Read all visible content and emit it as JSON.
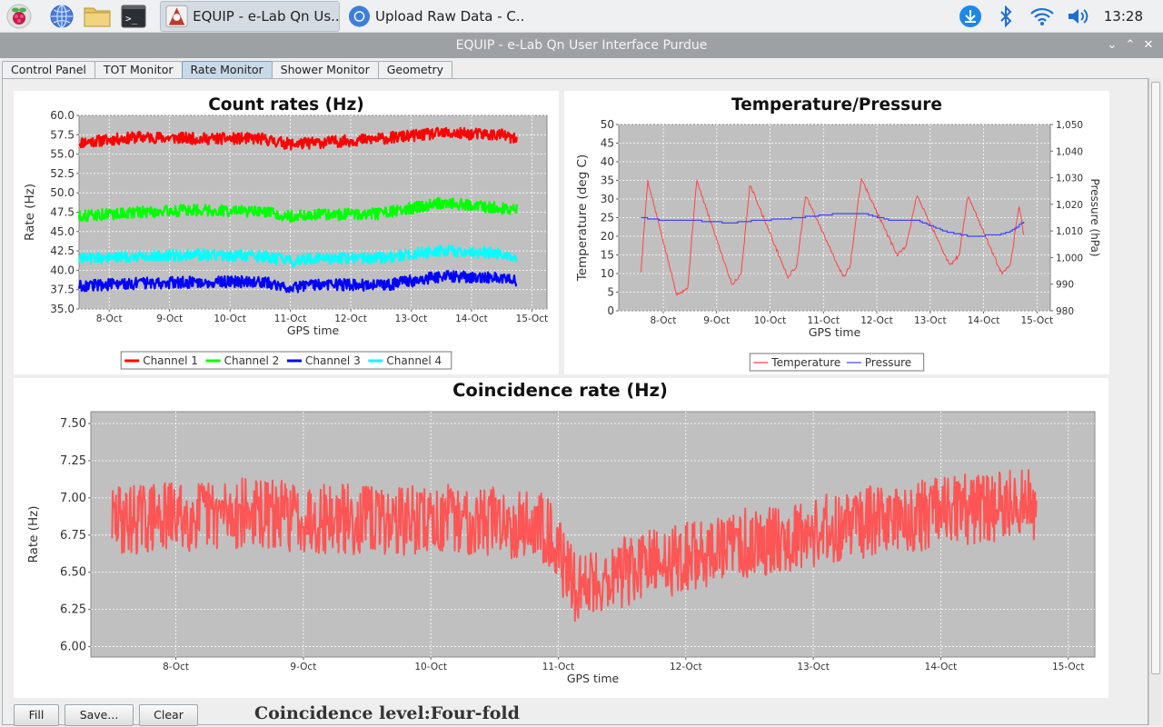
{
  "taskbar": {
    "tasks": [
      {
        "label": "EQUIP - e-Lab Qn Us..."
      },
      {
        "label": "Upload Raw Data - C..."
      }
    ],
    "clock": "13:28"
  },
  "window": {
    "title": "EQUIP - e-Lab Qn User Interface Purdue",
    "tabs": [
      {
        "label": "Control Panel",
        "active": false
      },
      {
        "label": "TOT Monitor",
        "active": false
      },
      {
        "label": "Rate Monitor",
        "active": true
      },
      {
        "label": "Shower Monitor",
        "active": false
      },
      {
        "label": "Geometry",
        "active": false
      }
    ]
  },
  "buttons": {
    "fill": "Fill",
    "save": "Save...",
    "clear": "Clear"
  },
  "coincidence_level": "Coincidence level:Four-fold",
  "colors": {
    "plot_bg": "#c0c0c0",
    "ch1": "#ff0000",
    "ch2": "#00ff00",
    "ch3": "#0000ff",
    "ch4": "#00ffff",
    "temperature": "#ff4444",
    "pressure": "#4444ff",
    "coincidence": "#ff5555"
  },
  "chart_data": [
    {
      "type": "line",
      "title": "Count rates (Hz)",
      "xlabel": "GPS time",
      "ylabel": "Rate (Hz)",
      "x_ticks": [
        "8-Oct",
        "9-Oct",
        "10-Oct",
        "11-Oct",
        "12-Oct",
        "13-Oct",
        "14-Oct",
        "15-Oct"
      ],
      "y_ticks": [
        "35.0",
        "37.5",
        "40.0",
        "42.5",
        "45.0",
        "47.5",
        "50.0",
        "52.5",
        "55.0",
        "57.5",
        "60.0"
      ],
      "ylim": [
        35,
        60
      ],
      "xlim": [
        "2023-10-07T12:00",
        "2023-10-15T06:00"
      ],
      "grid": true,
      "legend": "bottom",
      "x": [
        "2023-10-07T12:00",
        "2023-10-08T12:00",
        "2023-10-09T12:00",
        "2023-10-10T12:00",
        "2023-10-11T00:00",
        "2023-10-11T12:00",
        "2023-10-12T12:00",
        "2023-10-13T12:00",
        "2023-10-14T12:00",
        "2023-10-14T18:00"
      ],
      "series": [
        {
          "name": "Channel 1",
          "values": [
            56.5,
            57.2,
            57.0,
            57.0,
            56.3,
            56.5,
            57.0,
            57.7,
            57.5,
            56.8
          ]
        },
        {
          "name": "Channel 2",
          "values": [
            47.0,
            47.5,
            47.8,
            47.5,
            47.0,
            47.2,
            47.3,
            48.7,
            48.0,
            47.8
          ]
        },
        {
          "name": "Channel 3",
          "values": [
            38.0,
            38.3,
            38.5,
            38.5,
            37.8,
            38.2,
            38.0,
            39.2,
            39.0,
            38.5
          ]
        },
        {
          "name": "Channel 4",
          "values": [
            41.5,
            41.8,
            42.0,
            41.8,
            41.2,
            41.5,
            41.6,
            42.5,
            42.2,
            41.8
          ]
        }
      ]
    },
    {
      "type": "line",
      "title": "Temperature/Pressure",
      "xlabel": "GPS time",
      "ylabel": "Temperature (deg C)",
      "y2label": "Pressure (hPa)",
      "x_ticks": [
        "8-Oct",
        "9-Oct",
        "10-Oct",
        "11-Oct",
        "12-Oct",
        "13-Oct",
        "14-Oct",
        "15-Oct"
      ],
      "y_ticks": [
        "0",
        "5",
        "10",
        "15",
        "20",
        "25",
        "30",
        "35",
        "40",
        "45",
        "50"
      ],
      "y2_ticks": [
        "980",
        "990",
        "1,000",
        "1,010",
        "1,020",
        "1,030",
        "1,040",
        "1,050"
      ],
      "ylim": [
        0,
        50
      ],
      "y2lim": [
        980,
        1050
      ],
      "xlim": [
        "2023-10-07T04:00",
        "2023-10-15T06:00"
      ],
      "grid": true,
      "legend": "bottom",
      "series": [
        {
          "name": "Temperature",
          "axis": "left",
          "x": [
            "2023-10-07T14:00",
            "2023-10-07T17:00",
            "2023-10-08T06:00",
            "2023-10-08T11:00",
            "2023-10-08T15:00",
            "2023-10-09T07:00",
            "2023-10-09T11:00",
            "2023-10-09T15:00",
            "2023-10-10T08:00",
            "2023-10-10T12:00",
            "2023-10-10T16:00",
            "2023-10-11T09:00",
            "2023-10-11T12:00",
            "2023-10-11T17:00",
            "2023-10-12T09:00",
            "2023-10-12T13:00",
            "2023-10-12T18:00",
            "2023-10-13T09:00",
            "2023-10-13T13:00",
            "2023-10-13T17:00",
            "2023-10-14T08:00",
            "2023-10-14T12:00",
            "2023-10-14T16:00",
            "2023-10-14T18:00"
          ],
          "values": [
            10.5,
            35.0,
            4.5,
            6.0,
            35.0,
            7.0,
            10.0,
            34.0,
            9.0,
            12.0,
            31.0,
            9.0,
            12.0,
            35.5,
            15.0,
            17.0,
            31.0,
            12.0,
            15.0,
            31.0,
            10.0,
            12.0,
            28.5,
            20.5
          ]
        },
        {
          "name": "Pressure",
          "axis": "right",
          "x": [
            "2023-10-07T14:00",
            "2023-10-08T00:00",
            "2023-10-08T12:00",
            "2023-10-09T06:00",
            "2023-10-09T18:00",
            "2023-10-10T06:00",
            "2023-10-10T18:00",
            "2023-10-11T06:00",
            "2023-10-11T18:00",
            "2023-10-12T06:00",
            "2023-10-12T18:00",
            "2023-10-13T06:00",
            "2023-10-13T18:00",
            "2023-10-14T06:00",
            "2023-10-14T12:00",
            "2023-10-14T18:00"
          ],
          "values": [
            1015.0,
            1014.0,
            1014.0,
            1013.0,
            1014.0,
            1014.5,
            1015.5,
            1016.5,
            1016.5,
            1014.0,
            1014.0,
            1010.0,
            1008.0,
            1008.5,
            1010.0,
            1013.5
          ]
        }
      ]
    },
    {
      "type": "line",
      "title": "Coincidence rate (Hz)",
      "xlabel": "GPS time",
      "ylabel": "Rate (Hz)",
      "x_ticks": [
        "8-Oct",
        "9-Oct",
        "10-Oct",
        "11-Oct",
        "12-Oct",
        "13-Oct",
        "14-Oct",
        "15-Oct"
      ],
      "y_ticks": [
        "6.00",
        "6.25",
        "6.50",
        "6.75",
        "7.00",
        "7.25",
        "7.50"
      ],
      "ylim": [
        5.93,
        7.58
      ],
      "xlim": [
        "2023-10-07T08:00",
        "2023-10-15T05:00"
      ],
      "grid": true,
      "legend": "none",
      "x": [
        "2023-10-07T12:00",
        "2023-10-08T12:00",
        "2023-10-09T12:00",
        "2023-10-10T12:00",
        "2023-10-10T22:00",
        "2023-10-11T03:00",
        "2023-10-11T12:00",
        "2023-10-12T12:00",
        "2023-10-13T12:00",
        "2023-10-14T12:00",
        "2023-10-14T18:00"
      ],
      "series": [
        {
          "name": "Coincidence rate",
          "values": [
            6.85,
            6.9,
            6.85,
            6.85,
            6.8,
            6.4,
            6.5,
            6.7,
            6.85,
            6.95,
            6.95
          ]
        }
      ]
    }
  ]
}
